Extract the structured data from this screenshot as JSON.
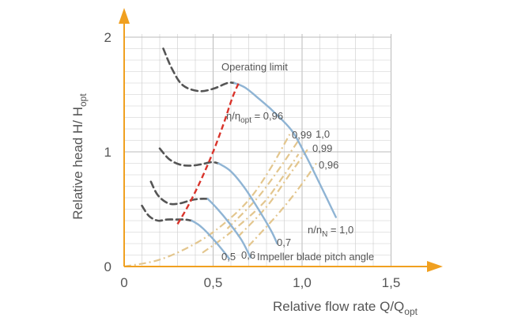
{
  "chart_data": {
    "type": "line",
    "xlabel": {
      "main": "Relative flow rate  Q/Q",
      "sub": "opt"
    },
    "ylabel": {
      "main": "Relative head H/ H",
      "sub": "opt"
    },
    "xlim": [
      0,
      1.5
    ],
    "ylim": [
      0,
      2
    ],
    "xticks": [
      "0",
      "0,5",
      "1,0",
      "1,5"
    ],
    "yticks": [
      "0",
      "1",
      "2"
    ],
    "grid": true,
    "colors": {
      "axis": "#f0a020",
      "grid": "#cccccc",
      "head_curve": "#8fb4d4",
      "unstable": "#555555",
      "operating_limit": "#d9342b",
      "efficiency": "#e3c68e"
    },
    "head_curves": [
      {
        "label": "0,5",
        "stable": [
          [
            0.38,
            0.4
          ],
          [
            0.43,
            0.35
          ],
          [
            0.5,
            0.24
          ],
          [
            0.57,
            0.11
          ],
          [
            0.59,
            0.07
          ]
        ],
        "unstable": [
          [
            0.1,
            0.53
          ],
          [
            0.14,
            0.44
          ],
          [
            0.19,
            0.4
          ],
          [
            0.24,
            0.41
          ],
          [
            0.3,
            0.41
          ],
          [
            0.34,
            0.41
          ],
          [
            0.38,
            0.4
          ]
        ]
      },
      {
        "label": "0,6",
        "stable": [
          [
            0.47,
            0.59
          ],
          [
            0.52,
            0.51
          ],
          [
            0.59,
            0.38
          ],
          [
            0.66,
            0.23
          ],
          [
            0.71,
            0.08
          ]
        ],
        "unstable": [
          [
            0.15,
            0.74
          ],
          [
            0.19,
            0.62
          ],
          [
            0.25,
            0.55
          ],
          [
            0.31,
            0.55
          ],
          [
            0.38,
            0.58
          ],
          [
            0.43,
            0.59
          ],
          [
            0.47,
            0.59
          ]
        ]
      },
      {
        "label": "0,7",
        "stable": [
          [
            0.53,
            0.9
          ],
          [
            0.6,
            0.83
          ],
          [
            0.68,
            0.68
          ],
          [
            0.77,
            0.46
          ],
          [
            0.83,
            0.3
          ],
          [
            0.86,
            0.2
          ]
        ],
        "unstable": [
          [
            0.2,
            1.03
          ],
          [
            0.25,
            0.94
          ],
          [
            0.31,
            0.89
          ],
          [
            0.37,
            0.88
          ],
          [
            0.43,
            0.89
          ],
          [
            0.49,
            0.91
          ],
          [
            0.53,
            0.9
          ]
        ]
      },
      {
        "label": "1,0",
        "stable": [
          [
            0.62,
            1.6
          ],
          [
            0.68,
            1.56
          ],
          [
            0.76,
            1.46
          ],
          [
            0.82,
            1.38
          ]
        ],
        "unstable": [
          [
            0.22,
            1.9
          ],
          [
            0.27,
            1.72
          ],
          [
            0.33,
            1.58
          ],
          [
            0.42,
            1.53
          ],
          [
            0.5,
            1.55
          ],
          [
            0.58,
            1.6
          ],
          [
            0.62,
            1.6
          ]
        ]
      },
      {
        "label": "n/n_N = 1,0",
        "stable": [
          [
            0.82,
            1.38
          ],
          [
            0.94,
            1.19
          ],
          [
            1.02,
            0.97
          ],
          [
            1.1,
            0.72
          ],
          [
            1.19,
            0.43
          ]
        ],
        "unstable": []
      }
    ],
    "operating_limit": {
      "label": "Operating limit",
      "points": [
        [
          0.3,
          0.37
        ],
        [
          0.36,
          0.53
        ],
        [
          0.43,
          0.75
        ],
        [
          0.5,
          1.0
        ],
        [
          0.56,
          1.25
        ],
        [
          0.61,
          1.48
        ],
        [
          0.65,
          1.62
        ]
      ]
    },
    "efficiency_curves": [
      {
        "label": "0,99",
        "points": [
          [
            0.0,
            0.0
          ],
          [
            0.2,
            0.06
          ],
          [
            0.4,
            0.2
          ],
          [
            0.55,
            0.36
          ],
          [
            0.7,
            0.58
          ],
          [
            0.82,
            0.85
          ],
          [
            0.94,
            1.18
          ]
        ]
      },
      {
        "label": "1,0",
        "points": [
          [
            0.58,
            0.33
          ],
          [
            0.75,
            0.6
          ],
          [
            0.87,
            0.85
          ],
          [
            0.98,
            1.1
          ]
        ]
      },
      {
        "label": "0,99",
        "points": [
          [
            0.64,
            0.26
          ],
          [
            0.8,
            0.52
          ],
          [
            0.92,
            0.78
          ],
          [
            1.03,
            1.02
          ]
        ]
      },
      {
        "label": "0,96",
        "points": [
          [
            0.7,
            0.18
          ],
          [
            0.86,
            0.45
          ],
          [
            0.98,
            0.68
          ],
          [
            1.08,
            0.9
          ]
        ]
      },
      {
        "label": "",
        "points": [
          [
            0.44,
            0.12
          ],
          [
            0.6,
            0.3
          ],
          [
            0.78,
            0.55
          ],
          [
            0.9,
            0.8
          ],
          [
            0.98,
            0.98
          ]
        ]
      }
    ],
    "annotations": {
      "operating_limit": "Operating limit",
      "eta_prefix": "η/η",
      "eta_sub": "opt",
      "eta_suffix": " = 0,96",
      "eff_099_top": "0,99",
      "eff_10": "1,0",
      "eff_099": "0,99",
      "eff_096": "0,96",
      "speed_prefix": "n/n",
      "speed_sub": "N",
      "speed_suffix": " = 1,0",
      "n_07": "0,7",
      "n_06": "0,6",
      "n_05": "0,5",
      "impeller": "Impeller blade pitch angle"
    }
  }
}
